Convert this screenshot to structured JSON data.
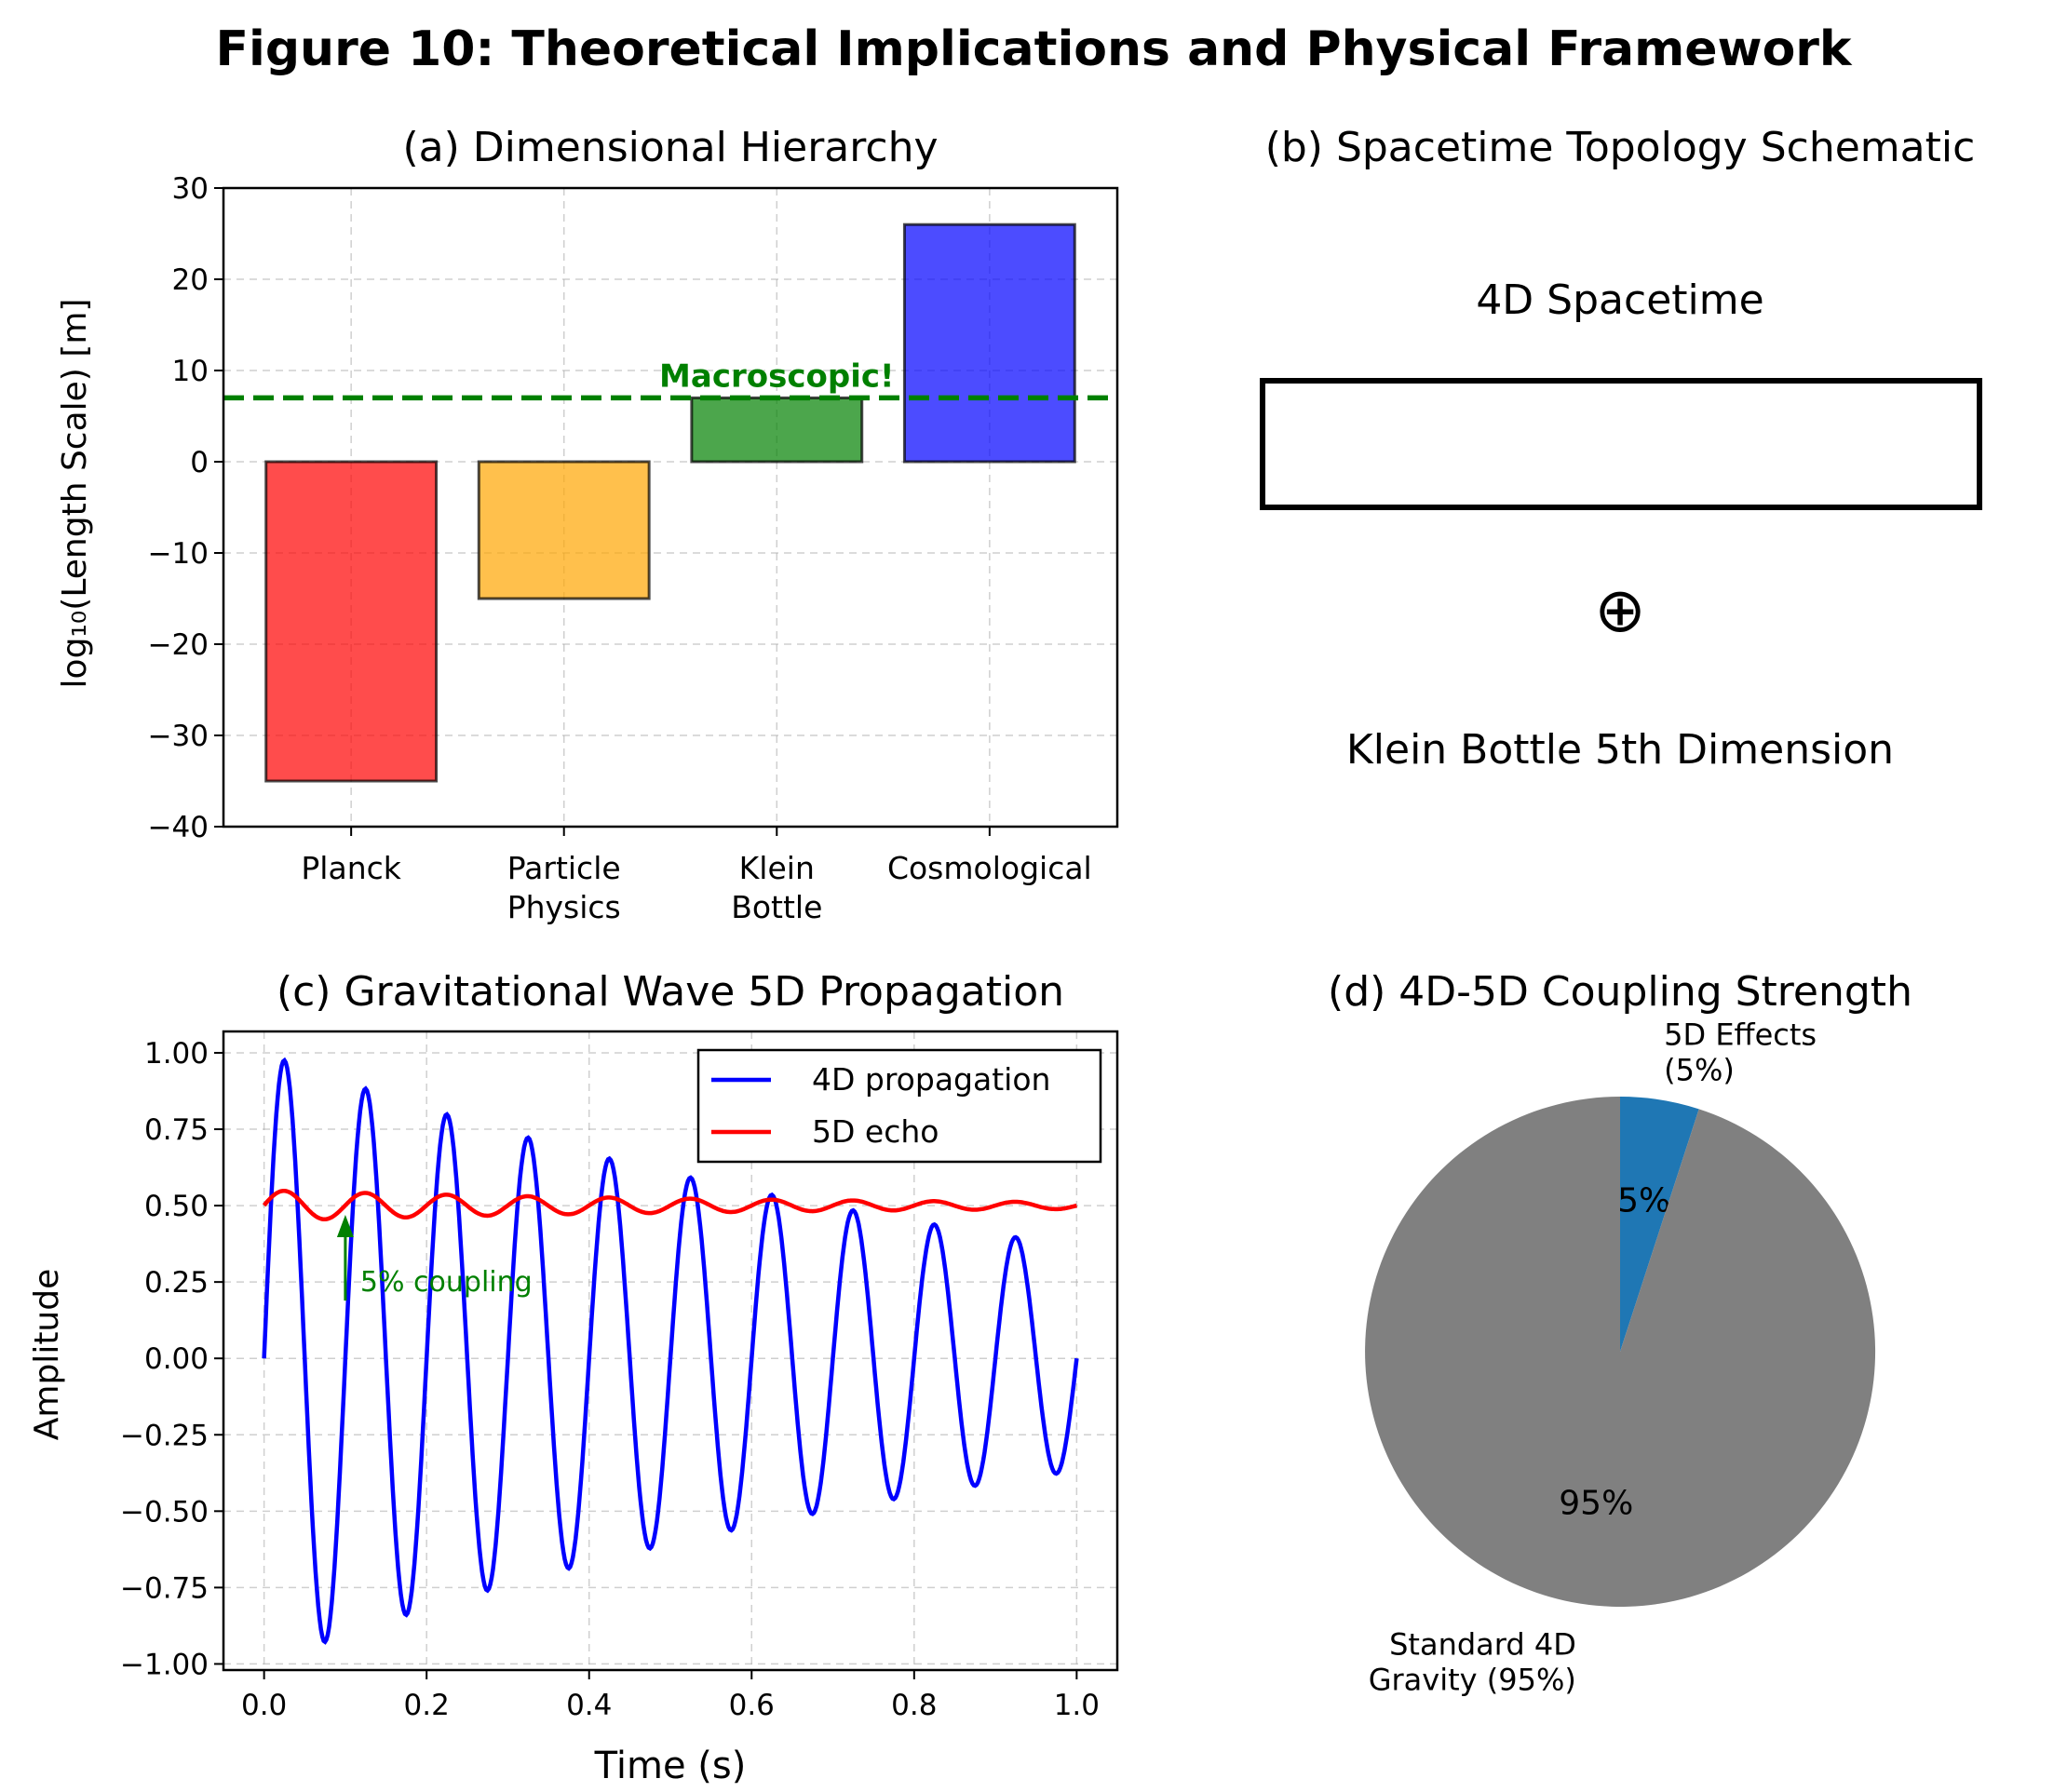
{
  "figure_title": "Figure 10: Theoretical Implications and Physical Framework",
  "colors": {
    "planck": "#ff0000",
    "particle": "#ffa500",
    "klein": "#008000",
    "cosmological": "#0000ff",
    "threshold": "#008000",
    "wave4d": "#0000ff",
    "wave5d": "#ff0000",
    "pie_5d": "#1f77b4",
    "pie_4d": "#808080"
  },
  "chart_data": [
    {
      "id": "a",
      "type": "bar",
      "title": "(a) Dimensional Hierarchy",
      "ylabel": "log₁₀(Length Scale) [m]",
      "xlabel": "",
      "categories": [
        [
          "Planck"
        ],
        [
          "Particle",
          "Physics"
        ],
        [
          "Klein",
          "Bottle"
        ],
        [
          "Cosmological"
        ]
      ],
      "values": [
        -35,
        -15,
        7,
        26
      ],
      "ylim": [
        -40,
        30
      ],
      "yticks": [
        30,
        20,
        10,
        0,
        -10,
        -20,
        -30,
        -40
      ],
      "ytick_labels": [
        "30",
        "20",
        "10",
        "0",
        "−10",
        "−20",
        "−30",
        "−40"
      ],
      "threshold": {
        "y": 7,
        "style": "dashed",
        "label": "Macroscopic!"
      },
      "grid": true
    },
    {
      "id": "b",
      "type": "schematic",
      "title": "(b) Spacetime Topology Schematic",
      "top_label": "4D Spacetime",
      "symbol": "⊕",
      "bottom_label": "Klein Bottle 5th Dimension"
    },
    {
      "id": "c",
      "type": "line",
      "title": "(c) Gravitational Wave 5D Propagation",
      "xlabel": "Time (s)",
      "ylabel": "Amplitude",
      "xlim": [
        -0.05,
        1.05
      ],
      "ylim": [
        -1.02,
        1.07
      ],
      "xticks": [
        0.0,
        0.2,
        0.4,
        0.6,
        0.8,
        1.0
      ],
      "xtick_labels": [
        "0.0",
        "0.2",
        "0.4",
        "0.6",
        "0.8",
        "1.0"
      ],
      "yticks": [
        1.0,
        0.75,
        0.5,
        0.25,
        0.0,
        -0.25,
        -0.5,
        -0.75,
        -1.0
      ],
      "ytick_labels": [
        "1.00",
        "0.75",
        "0.50",
        "0.25",
        "0.00",
        "−0.25",
        "−0.50",
        "−0.75",
        "−1.00"
      ],
      "series": [
        {
          "name": "4D propagation",
          "color": "blue",
          "function": "sin(2*pi*10*t)*exp(-t)",
          "t_range": [
            0,
            1
          ],
          "samples": 500
        },
        {
          "name": "5D echo",
          "color": "red",
          "function": "0.5 + 0.05*sin(2*pi*10*t)*exp(-t) with phase lag",
          "t_range": [
            0,
            1
          ],
          "samples": 500
        }
      ],
      "annotation": {
        "text": "5% coupling",
        "arrow_to": [
          0.1,
          0.47
        ],
        "text_at": [
          0.1,
          0.25
        ]
      },
      "legend_position": "upper right",
      "grid": true
    },
    {
      "id": "d",
      "type": "pie",
      "title": "(d) 4D-5D Coupling Strength",
      "slices": [
        {
          "label_lines": [
            "5D Effects",
            "(5%)"
          ],
          "value": 5,
          "pct": "5%"
        },
        {
          "label_lines": [
            "Standard 4D",
            "Gravity (95%)"
          ],
          "value": 95,
          "pct": "95%"
        }
      ],
      "start_angle": 90
    }
  ]
}
